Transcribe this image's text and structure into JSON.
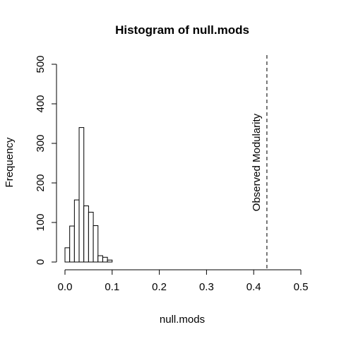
{
  "chart_data": {
    "type": "bar",
    "title": "Histogram of null.mods",
    "xlabel": "null.mods",
    "ylabel": "Frequency",
    "xlim": [
      0,
      0.5
    ],
    "ylim": [
      0,
      500
    ],
    "x_ticks": [
      "0.0",
      "0.1",
      "0.2",
      "0.3",
      "0.4",
      "0.5"
    ],
    "y_ticks": [
      "0",
      "100",
      "200",
      "300",
      "400",
      "500"
    ],
    "bin_width": 0.01,
    "bins": [
      {
        "start": 0.0,
        "end": 0.01,
        "count": 36
      },
      {
        "start": 0.01,
        "end": 0.02,
        "count": 91
      },
      {
        "start": 0.02,
        "end": 0.03,
        "count": 157
      },
      {
        "start": 0.03,
        "end": 0.04,
        "count": 340
      },
      {
        "start": 0.04,
        "end": 0.05,
        "count": 142
      },
      {
        "start": 0.05,
        "end": 0.06,
        "count": 126
      },
      {
        "start": 0.06,
        "end": 0.07,
        "count": 92
      },
      {
        "start": 0.07,
        "end": 0.08,
        "count": 16
      },
      {
        "start": 0.08,
        "end": 0.09,
        "count": 12
      },
      {
        "start": 0.09,
        "end": 0.1,
        "count": 5
      }
    ],
    "reference_line": {
      "x": 0.428,
      "label": "Observed Modularity",
      "style": "dashed"
    },
    "grid": false
  }
}
